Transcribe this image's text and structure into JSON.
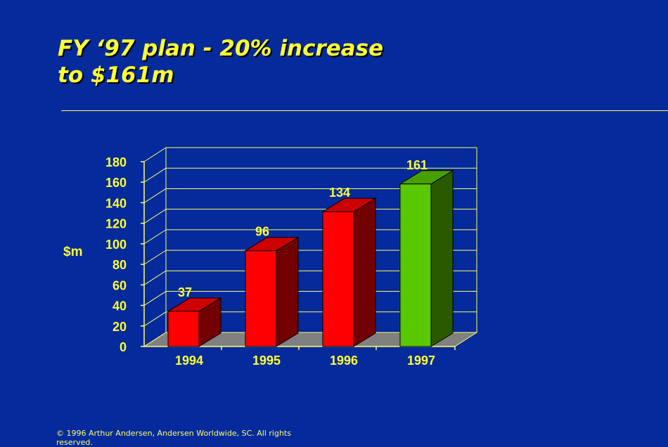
{
  "slide": {
    "title_line1": "FY ‘97 plan - 20% increase",
    "title_line2": "to $161m",
    "footer": "© 1996 Arthur Andersen, Andersen Worldwide, SC. All rights reserved."
  },
  "chart_data": {
    "type": "bar",
    "style": "3d",
    "title": "",
    "xlabel": "",
    "ylabel": "$m",
    "ylim": [
      0,
      180
    ],
    "yticks": [
      0,
      20,
      40,
      60,
      80,
      100,
      120,
      140,
      160,
      180
    ],
    "categories": [
      "1994",
      "1995",
      "1996",
      "1997"
    ],
    "values": [
      37,
      96,
      134,
      161
    ],
    "data_labels": [
      "37",
      "96",
      "134",
      "161"
    ],
    "grid": true,
    "colors": {
      "actual": "#ff0000",
      "plan": "#5ac800",
      "axes": "#ffff66",
      "floor": "#808080"
    }
  }
}
